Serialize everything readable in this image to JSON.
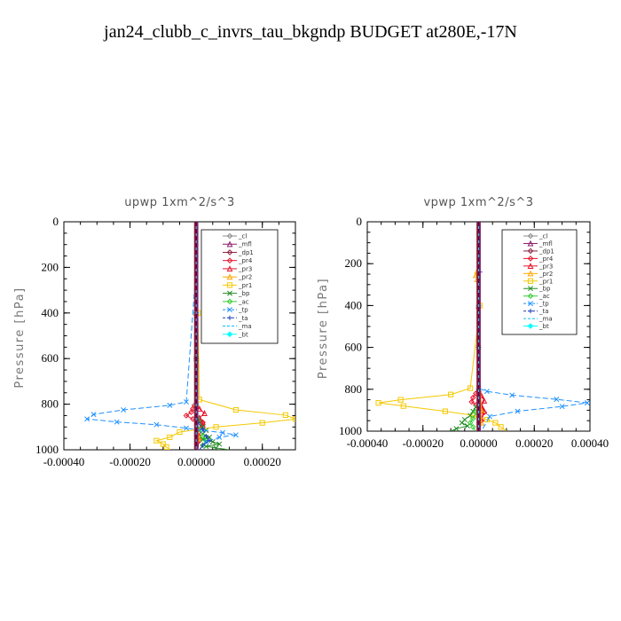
{
  "title": "jan24_clubb_c_invrs_tau_bkgndp  BUDGET at280E,-17N",
  "chart_data": [
    {
      "type": "line",
      "title": "upwp   1xm^2/s^3",
      "ylabel": "Pressure [hPa]",
      "xlabel": "",
      "xlim": [
        -0.0004,
        0.0003
      ],
      "ylim": [
        1000,
        0
      ],
      "xticks": [
        -0.0004,
        -0.0002,
        0.0,
        0.0002
      ],
      "xtick_labels": [
        "-0.00040",
        "-0.00020",
        "0.00000",
        "0.00020"
      ],
      "yticks": [
        0,
        200,
        400,
        600,
        800,
        1000
      ],
      "ytick_labels": [
        "0",
        "200",
        "400",
        "600",
        "800",
        "1000"
      ],
      "legend_position": "top-right",
      "series": [
        {
          "name": "_cl",
          "color": "#8c8c8c",
          "marker": "diamond",
          "dash": "",
          "x": [
            0,
            0,
            0,
            0,
            0,
            0,
            0
          ],
          "y": [
            0,
            200,
            400,
            600,
            800,
            900,
            1000
          ]
        },
        {
          "name": "_mfl",
          "color": "#8b1a6b",
          "marker": "triangle",
          "dash": "",
          "x": [
            0,
            0,
            0,
            0,
            0,
            0,
            0
          ],
          "y": [
            0,
            200,
            400,
            600,
            800,
            900,
            1000
          ]
        },
        {
          "name": "_dp1",
          "color": "#8b2040",
          "marker": "diamond",
          "dash": "",
          "x": [
            0,
            0,
            0,
            0,
            0,
            0,
            0
          ],
          "y": [
            0,
            200,
            400,
            600,
            800,
            900,
            1000
          ]
        },
        {
          "name": "_pr4",
          "color": "#e8102a",
          "marker": "diamond",
          "dash": "",
          "x": [
            0,
            0,
            -5e-06,
            -1e-05,
            -1.5e-05,
            -3e-05,
            -1e-05,
            2e-05,
            2e-05,
            0,
            1e-05,
            0
          ],
          "y": [
            0,
            790,
            805,
            820,
            835,
            850,
            865,
            880,
            900,
            930,
            960,
            1000
          ]
        },
        {
          "name": "_pr3",
          "color": "#e8102a",
          "marker": "triangle",
          "dash": "",
          "x": [
            0,
            0,
            1e-05,
            2.5e-05,
            1e-05,
            2e-05,
            1.5e-05,
            1e-05,
            5e-06
          ],
          "y": [
            0,
            800,
            820,
            840,
            860,
            880,
            900,
            940,
            1000
          ]
        },
        {
          "name": "_pr2",
          "color": "#ffa500",
          "marker": "triangle",
          "dash": "",
          "x": [
            0,
            0,
            0,
            0,
            0,
            0,
            1e-05,
            0
          ],
          "y": [
            0,
            200,
            400,
            600,
            800,
            880,
            950,
            1000
          ]
        },
        {
          "name": "_pr1",
          "color": "#f5c800",
          "marker": "square",
          "dash": "",
          "x": [
            0,
            0,
            5e-06,
            1e-05,
            0.00012,
            0.00027,
            0.0003,
            0.0002,
            6e-05,
            -5e-05,
            -8e-05,
            -0.00012,
            -0.0001,
            -9e-05,
            -8e-05
          ],
          "y": [
            0,
            200,
            400,
            780,
            825,
            848,
            865,
            882,
            900,
            922,
            945,
            960,
            975,
            988,
            1000
          ]
        },
        {
          "name": "_bp",
          "color": "#228b22",
          "marker": "x",
          "dash": "",
          "x": [
            0,
            0,
            0,
            5e-06,
            1e-05,
            2e-05,
            3e-05,
            2e-05,
            4e-05,
            2e-05,
            5e-05,
            7e-05,
            3e-05,
            6e-05,
            0.0001
          ],
          "y": [
            0,
            200,
            600,
            860,
            880,
            900,
            915,
            930,
            945,
            955,
            965,
            975,
            985,
            992,
            1000
          ]
        },
        {
          "name": "_ac",
          "color": "#32cd32",
          "marker": "diamond",
          "dash": "",
          "x": [
            0,
            0,
            0,
            0,
            1e-05,
            2e-05,
            3e-05,
            2e-05,
            1e-05
          ],
          "y": [
            0,
            200,
            600,
            880,
            910,
            940,
            960,
            980,
            1000
          ]
        },
        {
          "name": "_tp",
          "color": "#1e90ff",
          "marker": "x",
          "dash": "6,3",
          "x": [
            0,
            0,
            -3e-05,
            -8e-05,
            -0.00022,
            -0.00031,
            -0.00033,
            -0.00024,
            -0.00012,
            -3e-05,
            2e-05,
            8e-05,
            0.00012,
            7e-05,
            3e-05,
            1e-05
          ],
          "y": [
            0,
            200,
            790,
            805,
            825,
            845,
            865,
            878,
            890,
            905,
            915,
            925,
            935,
            945,
            965,
            1000
          ]
        },
        {
          "name": "_ta",
          "color": "#2040c0",
          "marker": "plus",
          "dash": "6,3",
          "x": [
            0,
            0,
            0,
            5e-06,
            2e-05,
            3e-05,
            4e-05,
            2e-05,
            1e-05
          ],
          "y": [
            0,
            200,
            600,
            880,
            910,
            940,
            960,
            980,
            1000
          ]
        },
        {
          "name": "_ma",
          "color": "#00bfff",
          "marker": "",
          "dash": "6,3",
          "x": [
            0,
            0,
            0,
            0,
            0,
            0
          ],
          "y": [
            0,
            200,
            400,
            600,
            800,
            1000
          ]
        },
        {
          "name": "_bt",
          "color": "#00ffff",
          "marker": "diamond",
          "dash": "",
          "x": [
            0,
            0,
            0,
            0,
            0,
            0
          ],
          "y": [
            0,
            200,
            400,
            600,
            800,
            1000
          ]
        }
      ]
    },
    {
      "type": "line",
      "title": "vpwp   1xm^2/s^3",
      "ylabel": "Pressure [hPa]",
      "xlabel": "",
      "xlim": [
        -0.0004,
        0.0004
      ],
      "ylim": [
        1000,
        0
      ],
      "xticks": [
        -0.0004,
        -0.0002,
        0.0,
        0.0002,
        0.0004
      ],
      "xtick_labels": [
        "-0.00040",
        "-0.00020",
        "0.00000",
        "0.00020",
        "0.00040"
      ],
      "yticks": [
        0,
        200,
        400,
        600,
        800,
        1000
      ],
      "ytick_labels": [
        "0",
        "200",
        "400",
        "600",
        "800",
        "1000"
      ],
      "legend_position": "top-right",
      "series": [
        {
          "name": "_cl",
          "color": "#8c8c8c",
          "marker": "diamond",
          "dash": "",
          "x": [
            0,
            0,
            0,
            0,
            0,
            0
          ],
          "y": [
            0,
            200,
            400,
            600,
            800,
            1000
          ]
        },
        {
          "name": "_mfl",
          "color": "#8b1a6b",
          "marker": "triangle",
          "dash": "",
          "x": [
            0,
            0,
            0,
            0,
            0,
            0
          ],
          "y": [
            0,
            200,
            400,
            600,
            800,
            1000
          ]
        },
        {
          "name": "_dp1",
          "color": "#8b2040",
          "marker": "diamond",
          "dash": "",
          "x": [
            0,
            0,
            0,
            0,
            0,
            0
          ],
          "y": [
            0,
            200,
            400,
            600,
            800,
            1000
          ]
        },
        {
          "name": "_pr4",
          "color": "#e8102a",
          "marker": "diamond",
          "dash": "",
          "x": [
            0,
            0,
            -1e-05,
            -2e-05,
            -2.5e-05,
            -1e-05,
            1e-05,
            2e-05,
            1e-05,
            0
          ],
          "y": [
            0,
            800,
            820,
            840,
            860,
            875,
            890,
            910,
            950,
            1000
          ]
        },
        {
          "name": "_pr3",
          "color": "#e8102a",
          "marker": "triangle",
          "dash": "",
          "x": [
            0,
            0,
            1e-05,
            2e-05,
            1e-05,
            2e-05,
            1e-05,
            5e-06
          ],
          "y": [
            0,
            800,
            830,
            855,
            880,
            905,
            940,
            1000
          ]
        },
        {
          "name": "_pr2",
          "color": "#ffa500",
          "marker": "triangle",
          "dash": "",
          "x": [
            0,
            0,
            -5e-06,
            -1e-05,
            -5e-06,
            0,
            1e-05,
            1e-05,
            0
          ],
          "y": [
            0,
            200,
            235,
            255,
            275,
            600,
            900,
            960,
            1000
          ]
        },
        {
          "name": "_pr1",
          "color": "#f5c800",
          "marker": "square",
          "dash": "",
          "x": [
            0,
            0,
            5e-06,
            -3e-05,
            -0.0001,
            -0.00028,
            -0.00036,
            -0.00027,
            -0.00012,
            -2e-05,
            3e-05,
            6e-05,
            8e-05,
            0.0001
          ],
          "y": [
            0,
            200,
            400,
            795,
            825,
            850,
            865,
            880,
            905,
            925,
            945,
            960,
            980,
            1000
          ]
        },
        {
          "name": "_bp",
          "color": "#228b22",
          "marker": "x",
          "dash": "",
          "x": [
            0,
            0,
            0,
            0,
            -1e-05,
            -2e-05,
            -3e-05,
            -5e-05,
            -6e-05,
            -4e-05,
            -8e-05,
            -0.0001
          ],
          "y": [
            0,
            200,
            600,
            860,
            885,
            905,
            925,
            945,
            960,
            975,
            988,
            1000
          ]
        },
        {
          "name": "_ac",
          "color": "#32cd32",
          "marker": "diamond",
          "dash": "",
          "x": [
            0,
            0,
            0,
            0,
            -1e-05,
            -2e-05,
            -3e-05,
            -2e-05,
            -1e-05
          ],
          "y": [
            0,
            200,
            600,
            880,
            910,
            940,
            960,
            980,
            1000
          ]
        },
        {
          "name": "_tp",
          "color": "#1e90ff",
          "marker": "x",
          "dash": "6,3",
          "x": [
            0,
            0,
            0,
            3e-05,
            0.00012,
            0.00028,
            0.00039,
            0.0003,
            0.00014,
            4e-05,
            1e-05
          ],
          "y": [
            0,
            200,
            795,
            810,
            828,
            848,
            865,
            882,
            905,
            930,
            1000
          ]
        },
        {
          "name": "_ta",
          "color": "#2040c0",
          "marker": "plus",
          "dash": "6,3",
          "x": [
            0,
            0,
            5e-06,
            0,
            0,
            0,
            0,
            0
          ],
          "y": [
            0,
            200,
            240,
            260,
            600,
            800,
            900,
            1000
          ]
        },
        {
          "name": "_ma",
          "color": "#00bfff",
          "marker": "",
          "dash": "6,3",
          "x": [
            0,
            0,
            0,
            0,
            0,
            0
          ],
          "y": [
            0,
            200,
            400,
            600,
            800,
            1000
          ]
        },
        {
          "name": "_bt",
          "color": "#00ffff",
          "marker": "diamond",
          "dash": "",
          "x": [
            0,
            0,
            0,
            0,
            0,
            0
          ],
          "y": [
            0,
            200,
            400,
            600,
            800,
            1000
          ]
        }
      ]
    }
  ]
}
